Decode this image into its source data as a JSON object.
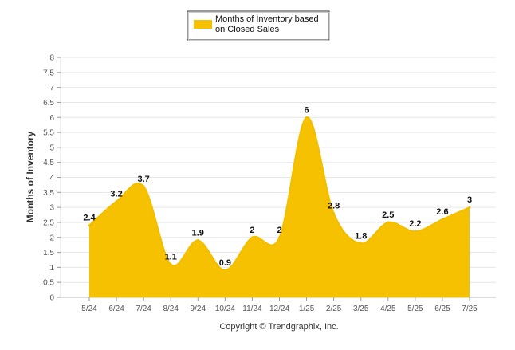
{
  "colors": {
    "fill": "#F5C100",
    "stroke": "#F2BE00",
    "grid": "#E6E6E6",
    "legend_border": "#333333",
    "tick_text": "#555555"
  },
  "legend": {
    "line1": "Months of Inventory based",
    "line2": "on Closed Sales"
  },
  "copyright": "Copyright © Trendgraphix, Inc.",
  "chart_data": {
    "type": "area",
    "title": "",
    "xlabel": "",
    "ylabel": "Months of Inventory",
    "categories": [
      "5/24",
      "6/24",
      "7/24",
      "8/24",
      "9/24",
      "10/24",
      "11/24",
      "12/24",
      "1/25",
      "2/25",
      "3/25",
      "4/25",
      "5/25",
      "6/25",
      "7/25"
    ],
    "series": [
      {
        "name": "Months of Inventory based on Closed Sales",
        "values": [
          2.4,
          3.2,
          3.7,
          1.1,
          1.9,
          0.9,
          2,
          2,
          6,
          2.8,
          1.8,
          2.5,
          2.2,
          2.6,
          3
        ]
      }
    ],
    "data_labels": [
      "2.4",
      "3.2",
      "3.7",
      "1.1",
      "1.9",
      "0.9",
      "2",
      "2",
      "6",
      "2.8",
      "1.8",
      "2.5",
      "2.2",
      "2.6",
      "3"
    ],
    "ylim": [
      0,
      8
    ],
    "yticks": [
      "0",
      "0.5",
      "1",
      "1.5",
      "2",
      "2.5",
      "3",
      "3.5",
      "4",
      "4.5",
      "5",
      "5.5",
      "6",
      "6.5",
      "7",
      "7.5",
      "8"
    ],
    "grid": true,
    "legend_position": "top-center",
    "smooth": true
  }
}
